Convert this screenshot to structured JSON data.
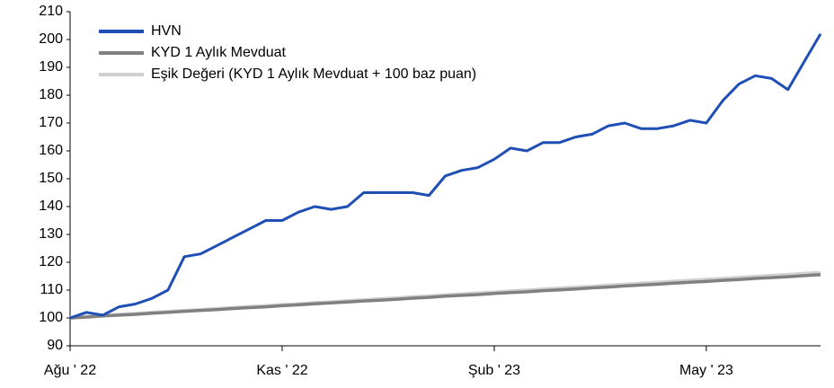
{
  "chart_data": {
    "type": "line",
    "categories": [
      "Ağu ' 22",
      null,
      null,
      null,
      null,
      null,
      null,
      null,
      null,
      null,
      null,
      null,
      null,
      "Kas ' 22",
      null,
      null,
      null,
      null,
      null,
      null,
      null,
      null,
      null,
      null,
      null,
      null,
      "Şub ' 23",
      null,
      null,
      null,
      null,
      null,
      null,
      null,
      null,
      null,
      null,
      null,
      null,
      "May ' 23",
      null,
      null,
      null,
      null,
      null,
      null,
      null
    ],
    "series": [
      {
        "name": "HVN",
        "color": "#1f4fb5",
        "values": [
          100,
          102,
          101,
          104,
          105,
          107,
          110,
          122,
          123,
          126,
          129,
          132,
          135,
          135,
          138,
          140,
          139,
          140,
          145,
          145,
          145,
          145,
          144,
          151,
          153,
          154,
          157,
          161,
          160,
          163,
          163,
          165,
          166,
          169,
          170,
          168,
          168,
          169,
          171,
          170,
          178,
          184,
          187,
          186,
          182,
          192,
          202
        ]
      },
      {
        "name": "KYD 1 Aylık Mevduat",
        "color": "#808080",
        "values": [
          100,
          100.3,
          100.7,
          101,
          101.3,
          101.7,
          102,
          102.4,
          102.7,
          103,
          103.4,
          103.7,
          104,
          104.4,
          104.7,
          105.1,
          105.4,
          105.7,
          106.1,
          106.4,
          106.7,
          107.1,
          107.4,
          107.8,
          108.1,
          108.4,
          108.8,
          109.1,
          109.4,
          109.8,
          110.1,
          110.4,
          110.8,
          111.1,
          111.5,
          111.8,
          112.1,
          112.5,
          112.8,
          113.1,
          113.5,
          113.8,
          114.2,
          114.5,
          114.8,
          115.2,
          115.5
        ]
      },
      {
        "name": "Eşik Değeri (KYD 1 Aylık Mevduat + 100 baz puan)",
        "color": "#d0d0d0",
        "values": [
          100.2,
          100.6,
          100.9,
          101.3,
          101.6,
          102,
          102.3,
          102.7,
          103,
          103.4,
          103.7,
          104.1,
          104.4,
          104.8,
          105.1,
          105.5,
          105.8,
          106.2,
          106.5,
          106.9,
          107.2,
          107.6,
          107.9,
          108.3,
          108.6,
          109,
          109.3,
          109.7,
          110,
          110.4,
          110.7,
          111.1,
          111.4,
          111.8,
          112.1,
          112.5,
          112.8,
          113.2,
          113.5,
          113.9,
          114.2,
          114.6,
          114.9,
          115.3,
          115.6,
          116,
          116.3
        ]
      }
    ],
    "ylim": [
      90,
      210
    ],
    "yticks": [
      90,
      100,
      110,
      120,
      130,
      140,
      150,
      160,
      170,
      180,
      190,
      200,
      210
    ],
    "grid": false,
    "legend": "upper left"
  }
}
